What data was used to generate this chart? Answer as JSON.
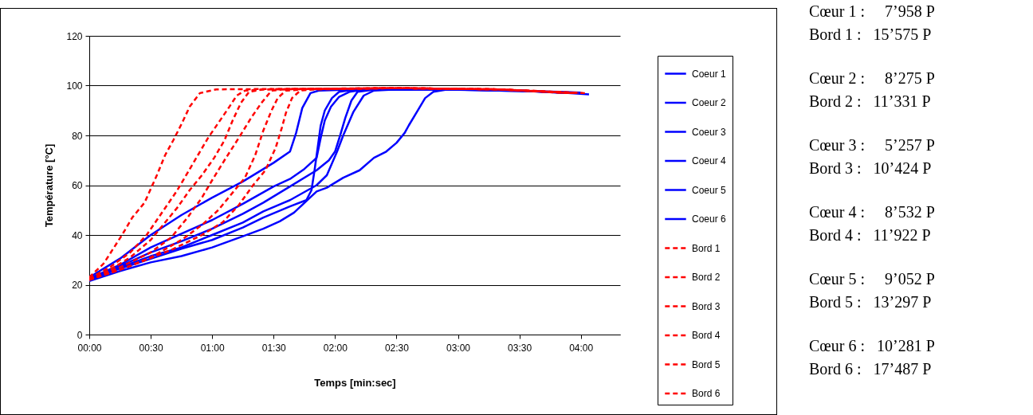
{
  "chart_data": {
    "type": "line",
    "xlabel": "Temps [min:sec]",
    "ylabel": "Température [°C]",
    "xlim": [
      0,
      259.2
    ],
    "xticks": [
      {
        "value": 0,
        "label": "00:00"
      },
      {
        "value": 30,
        "label": "00:30"
      },
      {
        "value": 60,
        "label": "01:00"
      },
      {
        "value": 90,
        "label": "01:30"
      },
      {
        "value": 120,
        "label": "02:00"
      },
      {
        "value": 150,
        "label": "02:30"
      },
      {
        "value": 180,
        "label": "03:00"
      },
      {
        "value": 210,
        "label": "03:30"
      },
      {
        "value": 240,
        "label": "04:00"
      }
    ],
    "ylim": [
      0,
      120
    ],
    "yticks": [
      0,
      20,
      40,
      60,
      80,
      100,
      120
    ],
    "grid": "y",
    "legend": "right",
    "marker": "none",
    "series": [
      {
        "name": "Coeur 1",
        "color": "#0000ff",
        "line_style": "solid",
        "x": [
          0,
          15,
          30,
          45,
          60,
          75,
          90,
          98,
          101,
          104,
          108,
          112,
          130,
          170,
          200,
          230,
          240
        ],
        "values": [
          23,
          30.5,
          40,
          48,
          55,
          61.5,
          69,
          73.5,
          81,
          91,
          97,
          98,
          98.5,
          98.5,
          98,
          97.5,
          97.2
        ]
      },
      {
        "name": "Coeur 2",
        "color": "#0000ff",
        "line_style": "solid",
        "x": [
          0,
          15,
          30,
          45,
          60,
          75,
          90,
          98,
          105,
          111,
          113,
          115,
          118,
          122,
          127,
          135,
          180,
          210,
          236
        ],
        "values": [
          22.5,
          28,
          35,
          40.5,
          46,
          52.5,
          59.5,
          62.5,
          66.5,
          71,
          79,
          86,
          91.5,
          95.5,
          97.5,
          98.5,
          98.5,
          98,
          97
        ]
      },
      {
        "name": "Coeur 3",
        "color": "#0000ff",
        "line_style": "solid",
        "x": [
          0,
          15,
          30,
          45,
          60,
          75,
          85,
          98,
          111,
          117,
          120,
          122.5,
          125,
          128,
          131,
          140,
          180,
          210,
          234
        ],
        "values": [
          22,
          27.5,
          33,
          37.5,
          42.5,
          48.5,
          53,
          59.5,
          66,
          70,
          73.5,
          80,
          87,
          94,
          97.5,
          98.5,
          98.5,
          98,
          97
        ]
      },
      {
        "name": "Coeur 4",
        "color": "#0000ff",
        "line_style": "solid",
        "x": [
          0,
          15,
          30,
          45,
          60,
          75,
          85,
          98,
          111,
          116,
          121,
          124,
          129,
          134,
          139,
          150,
          180,
          210,
          238
        ],
        "values": [
          22,
          27,
          31.5,
          35,
          40,
          45,
          49.5,
          54,
          60,
          64,
          73.5,
          80,
          89.5,
          96,
          98,
          98.5,
          98.5,
          98,
          97
        ]
      },
      {
        "name": "Coeur 5",
        "color": "#0000ff",
        "line_style": "solid",
        "x": [
          0,
          15,
          30,
          45,
          60,
          75,
          85,
          98,
          106,
          108.5,
          110,
          111.5,
          113,
          115,
          118.5,
          122,
          130,
          180,
          210,
          232
        ],
        "values": [
          22,
          26.5,
          30.5,
          34.5,
          38,
          43,
          47,
          51.5,
          54,
          58,
          66,
          75,
          84,
          90,
          95,
          97.5,
          98.5,
          98.5,
          98,
          97
        ]
      },
      {
        "name": "Coeur 6",
        "color": "#0000ff",
        "line_style": "solid",
        "x": [
          0,
          15,
          30,
          45,
          60,
          75,
          85,
          93,
          100,
          111,
          116,
          124,
          132,
          139,
          145,
          150,
          154,
          156,
          160,
          164,
          168,
          175,
          200,
          225,
          244
        ],
        "values": [
          21.5,
          25.5,
          29,
          31.5,
          35,
          39.5,
          42.5,
          45.5,
          49,
          57.5,
          59,
          63,
          66,
          71,
          73.5,
          77,
          81,
          84,
          89.5,
          95,
          97.5,
          98.5,
          98,
          97.5,
          96.5
        ]
      },
      {
        "name": "Bord 1",
        "color": "#ff0000",
        "line_style": "dashed",
        "x": [
          0,
          7,
          16,
          21,
          27,
          33,
          37,
          41,
          45,
          49,
          54,
          62,
          150,
          200,
          241
        ],
        "values": [
          23,
          28.5,
          40,
          47,
          53,
          64,
          72,
          78,
          84.5,
          91.5,
          97,
          98.5,
          99,
          98.5,
          97
        ]
      },
      {
        "name": "Bord 2",
        "color": "#ff0000",
        "line_style": "dashed",
        "x": [
          0,
          10,
          20,
          28,
          33,
          38,
          43,
          48,
          53,
          58,
          63,
          68,
          72,
          76,
          85,
          150,
          200,
          239
        ],
        "values": [
          22.5,
          27,
          33,
          40,
          46,
          52,
          58,
          65,
          72,
          79,
          85,
          91,
          96,
          98,
          98.5,
          99,
          98.5,
          97
        ]
      },
      {
        "name": "Bord 3",
        "color": "#ff0000",
        "line_style": "dashed",
        "x": [
          0,
          10,
          20,
          30,
          37,
          43,
          49,
          55,
          61,
          66,
          70,
          74,
          78,
          85,
          150,
          200,
          237
        ],
        "values": [
          22,
          26,
          31,
          38,
          45,
          51,
          58,
          64,
          71,
          78,
          86,
          93,
          97.5,
          98.5,
          99,
          98.5,
          97
        ]
      },
      {
        "name": "Bord 4",
        "color": "#ff0000",
        "line_style": "dashed",
        "x": [
          0,
          15,
          30,
          40,
          48,
          55,
          60,
          66,
          73,
          79,
          84,
          89,
          95,
          150,
          200,
          235
        ],
        "values": [
          22,
          27,
          33,
          39,
          47,
          55,
          62,
          70,
          79,
          87,
          93,
          98,
          98.5,
          99,
          98.5,
          97
        ]
      },
      {
        "name": "Bord 5",
        "color": "#ff0000",
        "line_style": "dashed",
        "x": [
          0,
          15,
          30,
          45,
          55,
          63,
          70,
          76,
          81,
          85,
          89,
          92,
          96,
          105,
          150,
          200,
          233
        ],
        "values": [
          22,
          26,
          31,
          38,
          44,
          50,
          57,
          63,
          72,
          82,
          90,
          95,
          98,
          98.5,
          99,
          98.5,
          97
        ]
      },
      {
        "name": "Bord 6",
        "color": "#ff0000",
        "line_style": "dashed",
        "x": [
          0,
          20,
          40,
          55,
          65,
          73,
          80,
          86,
          91,
          94,
          96,
          99,
          103,
          110,
          150,
          200,
          242
        ],
        "values": [
          22,
          27.5,
          34,
          40,
          45,
          52,
          60,
          66,
          75,
          83,
          89,
          95,
          98,
          98.5,
          99,
          98.5,
          97
        ]
      }
    ],
    "annotations": [
      "Cœur 1 :     7’958 P",
      "Bord 1 :   15’575 P",
      "Cœur 2 :     8’275 P",
      "Bord 2 :   11’331 P",
      "Cœur 3 :     5’257 P",
      "Bord 3 :   10’424 P",
      "Cœur 4 :     8’532 P",
      "Bord 4 :   11’922 P",
      "Cœur 5 :     9’052 P",
      "Bord 5 :   13’297 P",
      "Cœur 6 :   10’281 P",
      "Bord 6 :   17’487 P"
    ]
  }
}
